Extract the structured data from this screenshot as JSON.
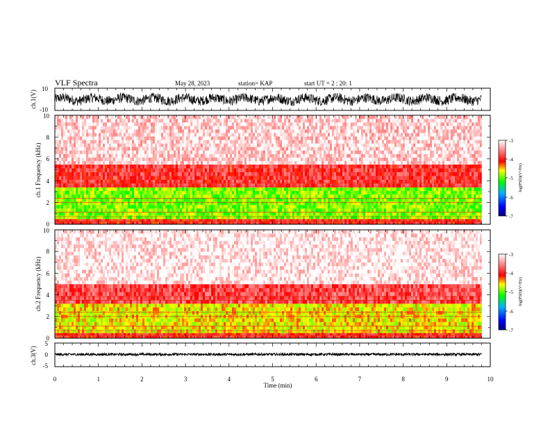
{
  "header": {
    "title": "VLF Spectra",
    "date": "May 28, 2023",
    "station": "station= KAP",
    "start": "start  UT =  2 : 20: 1"
  },
  "chart_data": [
    {
      "type": "line",
      "id": "ch1-waveform",
      "ylabel": "ch.1(V)",
      "ylim": [
        -10,
        10
      ],
      "yticks": [
        "10",
        "-10"
      ],
      "xlim": [
        0,
        10
      ],
      "trace_extent_min": [
        0,
        9.8
      ],
      "trace_amplitude_v": [
        -6,
        6
      ]
    },
    {
      "type": "heatmap",
      "id": "ch1-spectrogram",
      "ylabel": "ch.1 Frequency (kHz)",
      "ylim": [
        0,
        10
      ],
      "yticks": [
        "0",
        "2",
        "4",
        "6",
        "8",
        "10"
      ],
      "xlim": [
        0,
        10
      ],
      "colorbar": {
        "label": "log(PSD)(V²/Hz)",
        "range": [
          -7,
          -3
        ],
        "ticks": [
          "-3",
          "-4",
          "-5",
          "-6",
          "-7"
        ]
      },
      "bands_khz": [
        {
          "from": 0.0,
          "to": 0.5,
          "value": -4.0
        },
        {
          "from": 0.5,
          "to": 3.4,
          "value": -4.9
        },
        {
          "from": 3.4,
          "to": 5.5,
          "value": -3.9
        },
        {
          "from": 5.5,
          "to": 10.0,
          "value": -3.2
        }
      ]
    },
    {
      "type": "heatmap",
      "id": "ch2-spectrogram",
      "ylabel": "ch.2 Frequency (kHz)",
      "ylim": [
        0,
        10
      ],
      "yticks": [
        "0",
        "2",
        "4",
        "6",
        "8",
        "10"
      ],
      "xlim": [
        0,
        10
      ],
      "colorbar": {
        "label": "log(PSD)(V²/Hz)",
        "range": [
          -7,
          -3
        ],
        "ticks": [
          "-3",
          "-4",
          "-5",
          "-6",
          "-7"
        ]
      },
      "bands_khz": [
        {
          "from": 0.0,
          "to": 0.5,
          "value": -4.0
        },
        {
          "from": 0.5,
          "to": 3.2,
          "value": -4.6
        },
        {
          "from": 3.2,
          "to": 5.0,
          "value": -3.8
        },
        {
          "from": 5.0,
          "to": 10.0,
          "value": -3.1
        }
      ]
    },
    {
      "type": "line",
      "id": "ch3-waveform",
      "ylabel": "ch.3(V)",
      "ylim": [
        -5,
        5
      ],
      "yticks": [
        "5",
        "0",
        "-5"
      ],
      "xlim": [
        0,
        10
      ],
      "trace_extent_min": [
        0,
        9.8
      ],
      "trace_level_v": 0.2,
      "trace_amplitude_v": [
        -0.5,
        0.5
      ]
    }
  ],
  "xaxis": {
    "label": "Time (min)",
    "ticks": [
      "0",
      "1",
      "2",
      "3",
      "4",
      "5",
      "6",
      "7",
      "8",
      "9",
      "10"
    ]
  },
  "colors": {
    "trace": "#000000",
    "axis": "#000000"
  }
}
